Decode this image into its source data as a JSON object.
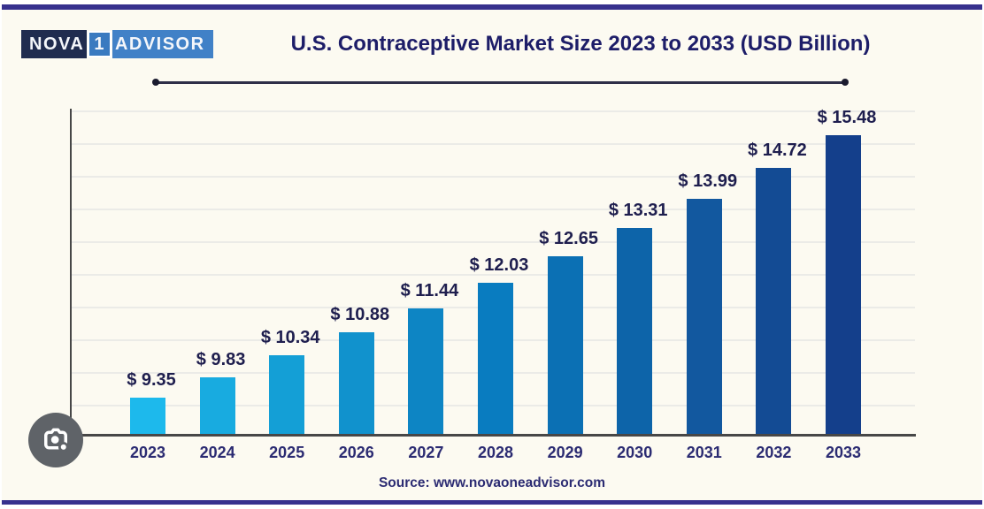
{
  "logo": {
    "part1": "NOVA",
    "part2": "1",
    "part3": "ADVISOR",
    "part1_bg": "#202c4f",
    "part2_bg": "#3a7ac0",
    "part3_bg": "#4181c7"
  },
  "header": {
    "title": "U.S. Contraceptive Market Size 2023 to 2033 (USD Billion)"
  },
  "chart_data": {
    "type": "bar",
    "title": "U.S. Contraceptive Market Size 2023 to 2033 (USD Billion)",
    "categories": [
      "2023",
      "2024",
      "2025",
      "2026",
      "2027",
      "2028",
      "2029",
      "2030",
      "2031",
      "2032",
      "2033"
    ],
    "values": [
      9.35,
      9.83,
      10.34,
      10.88,
      11.44,
      12.03,
      12.65,
      13.31,
      13.99,
      14.72,
      15.48
    ],
    "value_labels": [
      "$ 9.35",
      "$ 9.83",
      "$ 10.34",
      "$ 10.88",
      "$ 11.44",
      "$ 12.03",
      "$ 12.65",
      "$ 13.31",
      "$ 13.99",
      "$ 14.72",
      "$ 15.48"
    ],
    "bar_colors": [
      "#1db9ec",
      "#18abe0",
      "#149fd6",
      "#1192cd",
      "#0d85c4",
      "#097cc0",
      "#0b70b4",
      "#0d64a9",
      "#12589f",
      "#134b94",
      "#143f8b"
    ],
    "xlabel": "",
    "ylabel": "",
    "unit": "USD Billion",
    "ylim": [
      8.5,
      16.1
    ],
    "grid": true,
    "gridline_count": 10,
    "legend_position": "none"
  },
  "footer": {
    "source": "Source: www.novaoneadvisor.com"
  },
  "colors": {
    "frame_border": "#37318e",
    "card_background": "#fcfaf1",
    "axis": "#474747",
    "gridline": "#ebebe7",
    "title_text": "#1d1d68",
    "value_label_text": "#1e1e4e",
    "tick_label_text": "#2b2b72",
    "lens_button_bg": "#5f6368"
  }
}
